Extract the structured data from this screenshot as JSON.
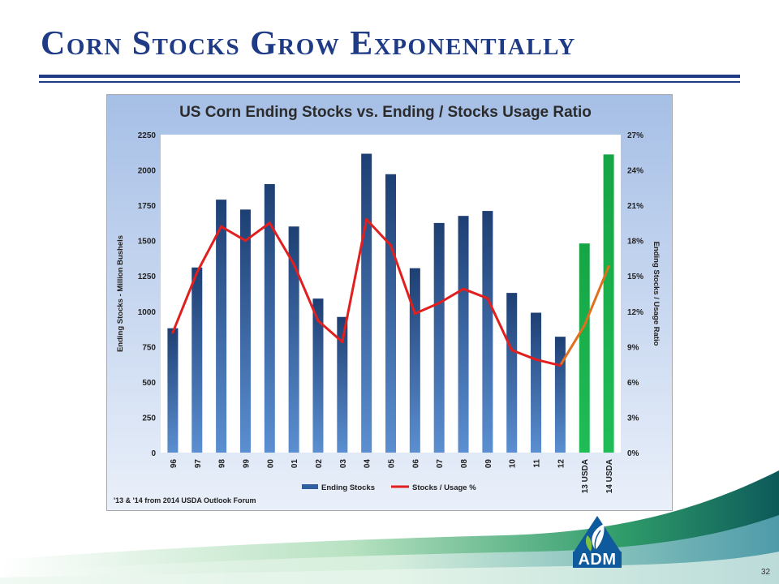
{
  "slide": {
    "title": "Corn Stocks Grow Exponentially",
    "page_number": "32",
    "logo_text": "ADM"
  },
  "colors": {
    "title": "#1f3b86",
    "stocks_bar": "#2f5f9e",
    "usda_bar": "#1db14f",
    "ratio_line": "#e21f1f",
    "projection_line": "#e0701e"
  },
  "chart_data": {
    "type": "bar",
    "title": "US Corn Ending Stocks vs. Ending / Stocks Usage Ratio",
    "ylabel": "Ending Stocks - Million Bushels",
    "y2label": "Ending Stocks / Usage Ratio",
    "categories": [
      "96",
      "97",
      "98",
      "99",
      "00",
      "01",
      "02",
      "03",
      "04",
      "05",
      "06",
      "07",
      "08",
      "09",
      "10",
      "11",
      "12",
      "13 USDA",
      "14 USDA"
    ],
    "ylim": [
      0,
      2250
    ],
    "y2lim": [
      0,
      27
    ],
    "yticks": [
      "0",
      "250",
      "500",
      "750",
      "1000",
      "1250",
      "1500",
      "1750",
      "2000",
      "2250"
    ],
    "y2ticks": [
      "0%",
      "3%",
      "6%",
      "9%",
      "12%",
      "15%",
      "18%",
      "21%",
      "24%",
      "27%"
    ],
    "series": [
      {
        "name": "Ending Stocks",
        "type": "bar",
        "values": [
          880,
          1310,
          1790,
          1720,
          1900,
          1600,
          1090,
          960,
          2115,
          1970,
          1305,
          1625,
          1675,
          1710,
          1130,
          990,
          820,
          1480,
          2110
        ]
      },
      {
        "name": "Stocks / Usage %",
        "type": "line",
        "axis": "right",
        "values": [
          10.2,
          15.3,
          19.2,
          18.0,
          19.5,
          16.0,
          11.2,
          9.4,
          19.8,
          17.6,
          11.8,
          12.7,
          13.9,
          13.1,
          8.7,
          7.9,
          7.4,
          10.8,
          15.8
        ]
      }
    ],
    "projected_categories": [
      "13 USDA",
      "14 USDA"
    ],
    "legend": [
      "Ending Stocks",
      "Stocks / Usage %"
    ],
    "legend_position": "bottom",
    "grid": false,
    "note": "'13 & '14 from 2014 USDA Outlook Forum"
  }
}
